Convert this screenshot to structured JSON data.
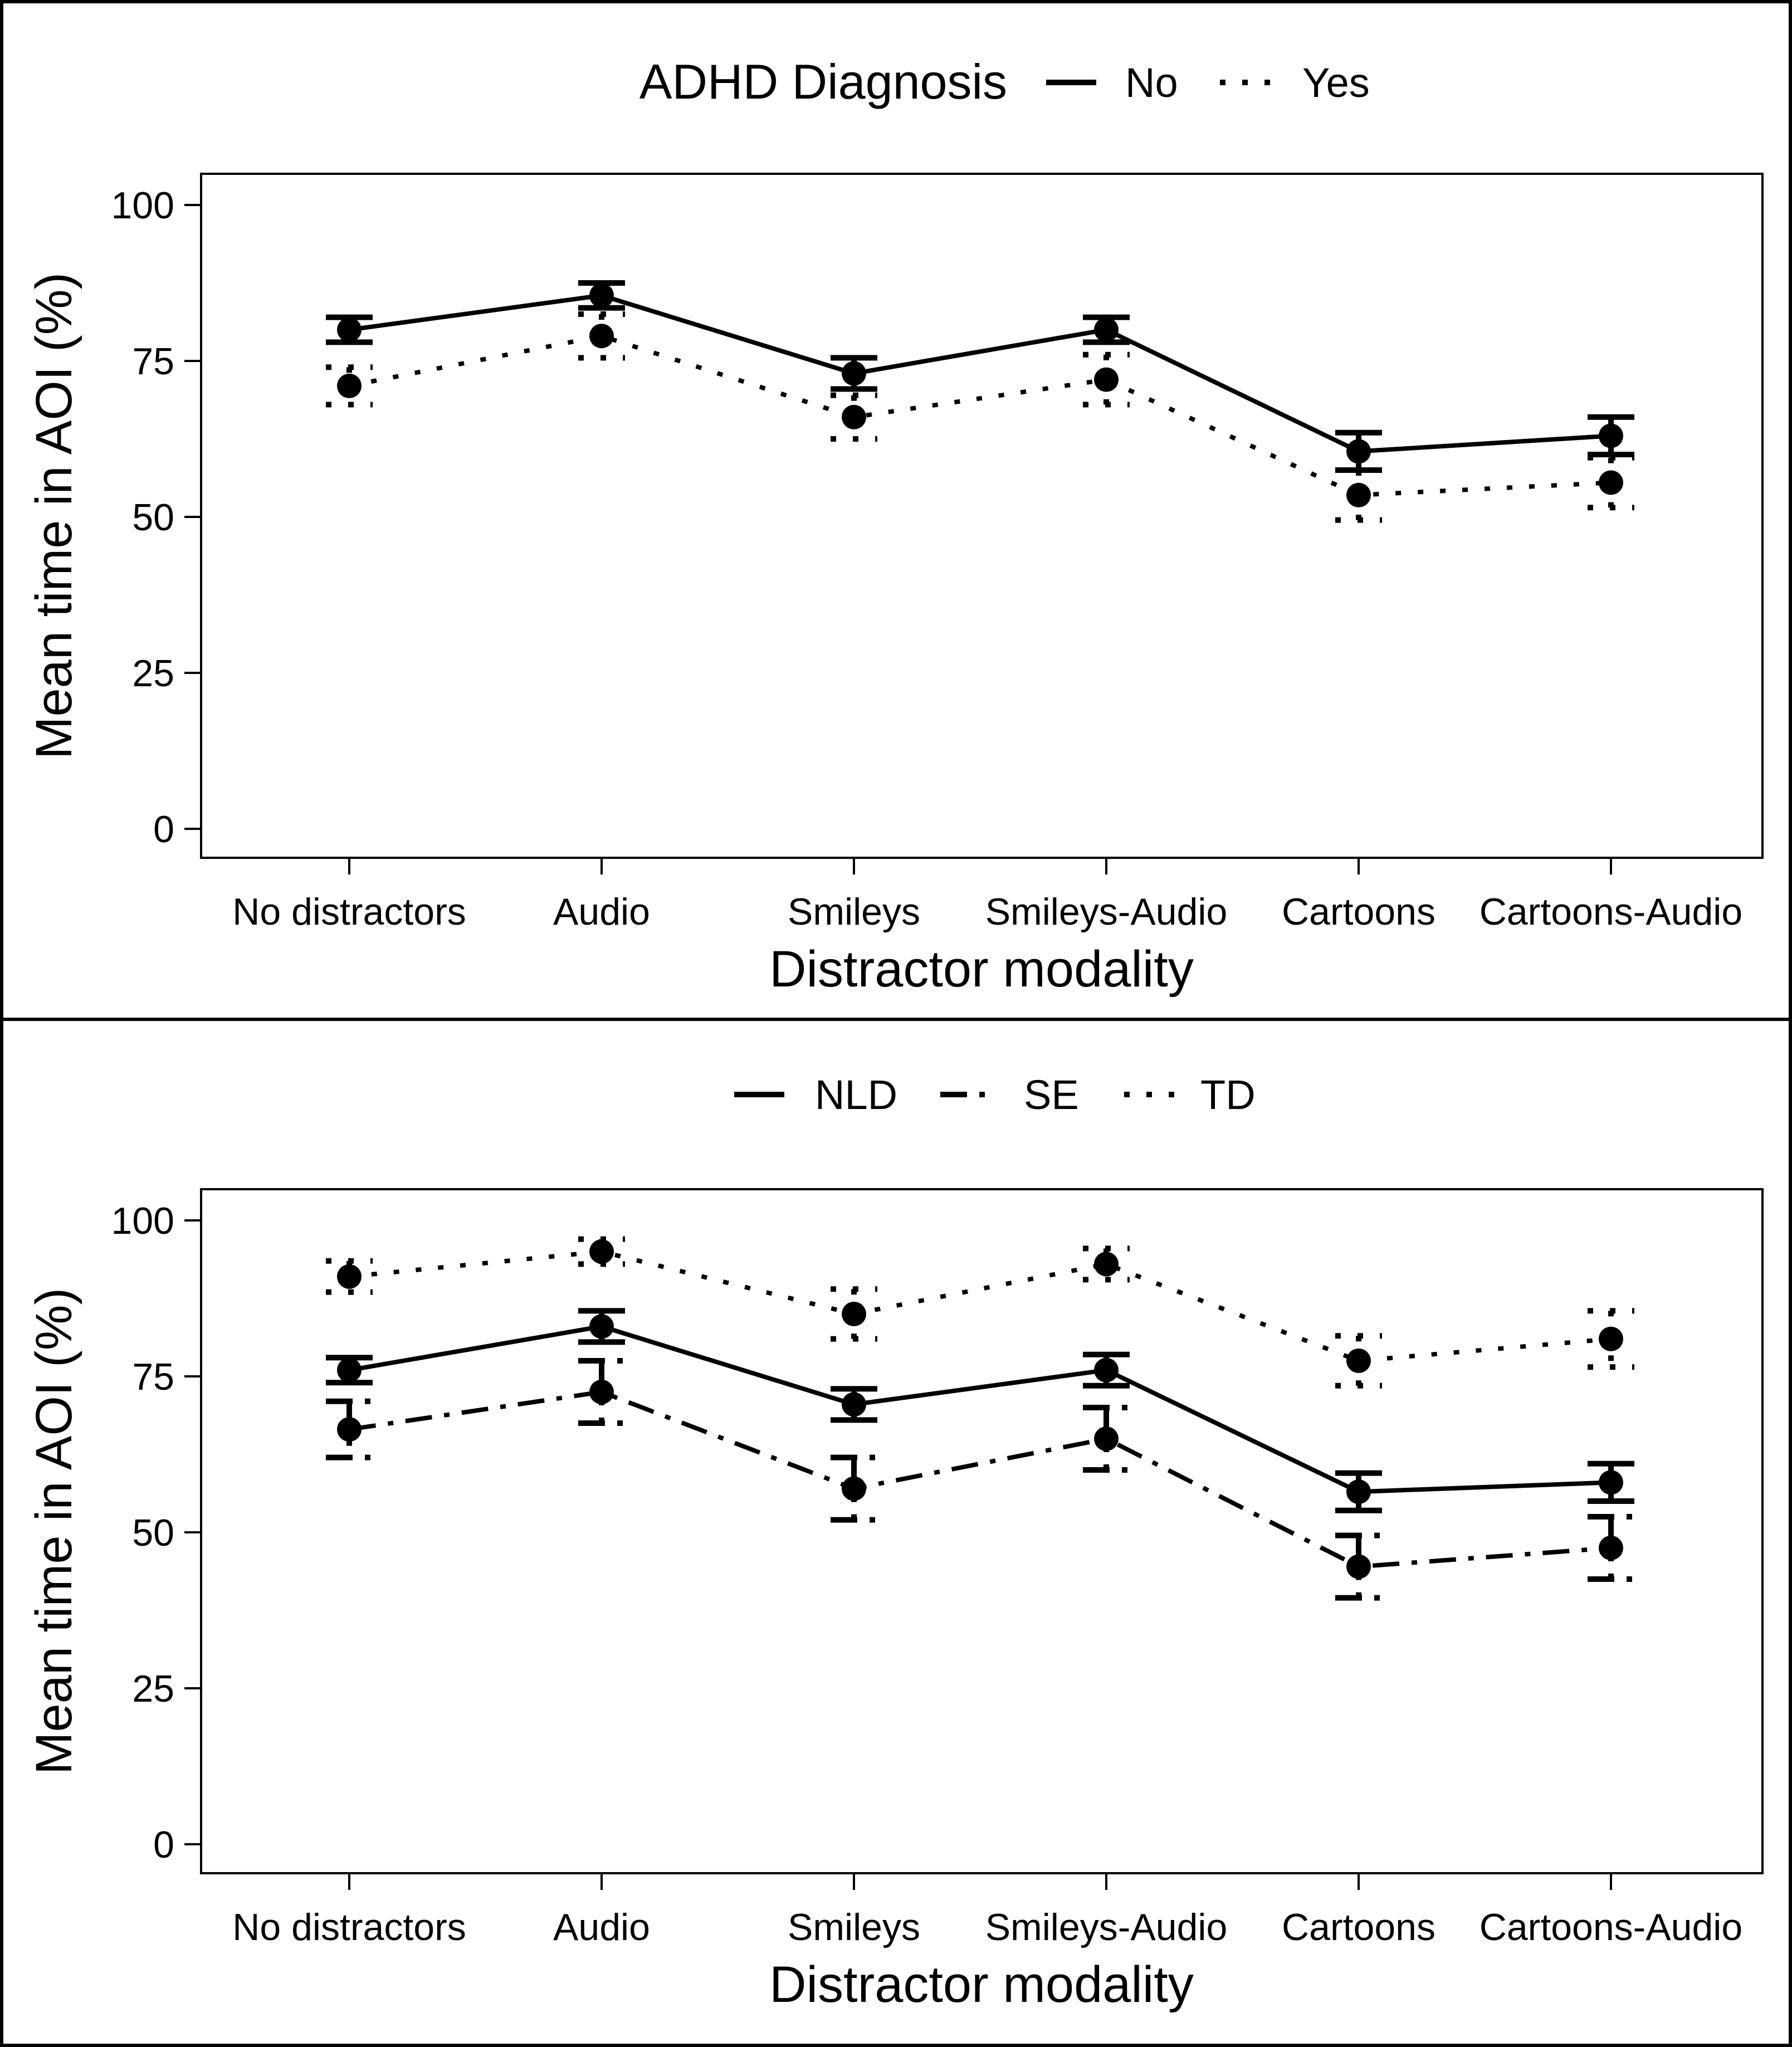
{
  "chart_data": [
    {
      "type": "line",
      "title": "",
      "legend_title": "ADHD Diagnosis",
      "xlabel": "Distractor modality",
      "ylabel": "Mean time in AOI (%)",
      "ylim": [
        0,
        100
      ],
      "yticks": [
        "0",
        "25",
        "50",
        "75",
        "100"
      ],
      "categories": [
        "No distractors",
        "Audio",
        "Smileys",
        "Smileys-Audio",
        "Cartoons",
        "Cartoons-Audio"
      ],
      "legend_position": "top",
      "series": [
        {
          "name": "No",
          "linestyle": "solid",
          "values": [
            80,
            85.5,
            73,
            80,
            60.5,
            63
          ],
          "error": [
            2,
            2,
            2.5,
            2,
            3,
            3
          ]
        },
        {
          "name": "Yes",
          "linestyle": "dotted",
          "values": [
            71,
            79,
            66,
            72,
            53.5,
            55.5
          ],
          "error": [
            3,
            3.5,
            3.5,
            4,
            4,
            4
          ]
        }
      ]
    },
    {
      "type": "line",
      "title": "",
      "legend_title": "",
      "xlabel": "Distractor modality",
      "ylabel": "Mean time in AOI (%)",
      "ylim": [
        0,
        100
      ],
      "yticks": [
        "0",
        "25",
        "50",
        "75",
        "100"
      ],
      "categories": [
        "No distractors",
        "Audio",
        "Smileys",
        "Smileys-Audio",
        "Cartoons",
        "Cartoons-Audio"
      ],
      "legend_position": "top",
      "series": [
        {
          "name": "NLD",
          "linestyle": "solid",
          "values": [
            76,
            83,
            70.5,
            76,
            56.5,
            58
          ],
          "error": [
            2,
            2.5,
            2.5,
            2.5,
            3,
            3
          ]
        },
        {
          "name": "SE",
          "linestyle": "dashdot",
          "values": [
            66.5,
            72.5,
            57,
            65,
            44.5,
            47.5
          ],
          "error": [
            4.5,
            5,
            5,
            5,
            5,
            5
          ]
        },
        {
          "name": "TD",
          "linestyle": "dotted",
          "values": [
            91,
            95,
            85,
            93,
            77.5,
            81
          ],
          "error": [
            2.5,
            2,
            4,
            2.5,
            4,
            4.5
          ]
        }
      ]
    }
  ]
}
